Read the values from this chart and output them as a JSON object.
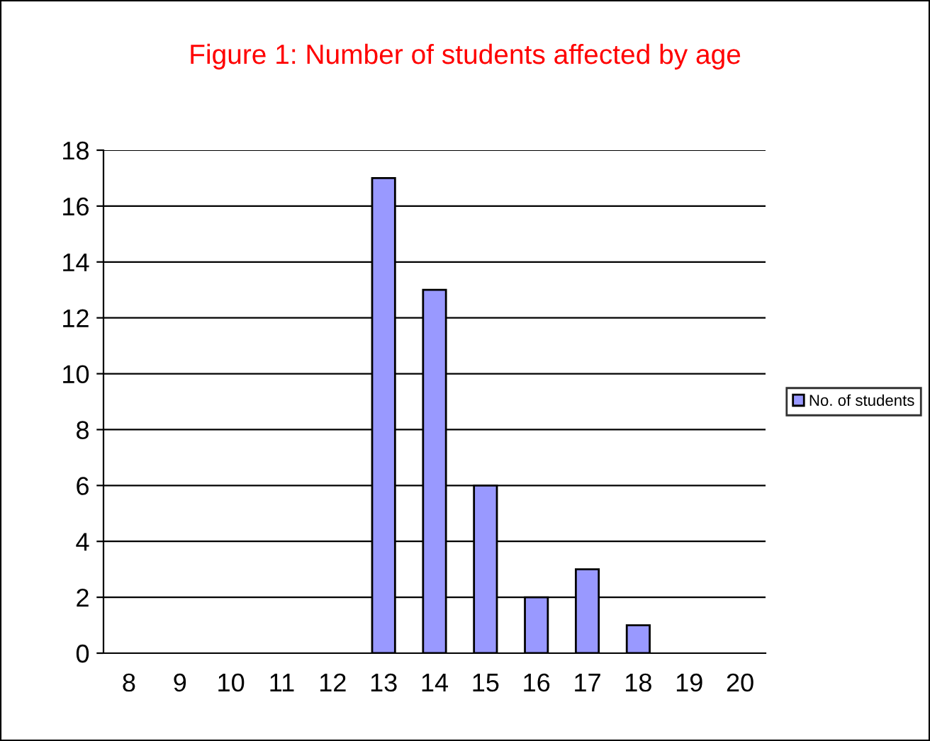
{
  "chart_data": {
    "type": "bar",
    "title": "Figure 1: Number of students affected by age",
    "categories": [
      "8",
      "9",
      "10",
      "11",
      "12",
      "13",
      "14",
      "15",
      "16",
      "17",
      "18",
      "19",
      "20"
    ],
    "series": [
      {
        "name": "No. of students",
        "color": "#9999ff",
        "values": [
          0,
          0,
          0,
          0,
          0,
          17,
          13,
          6,
          2,
          3,
          1,
          0,
          0
        ]
      }
    ],
    "ylim": [
      0,
      18
    ],
    "yticks": [
      0,
      2,
      4,
      6,
      8,
      10,
      12,
      14,
      16,
      18
    ],
    "grid": "y",
    "legend": "right"
  }
}
